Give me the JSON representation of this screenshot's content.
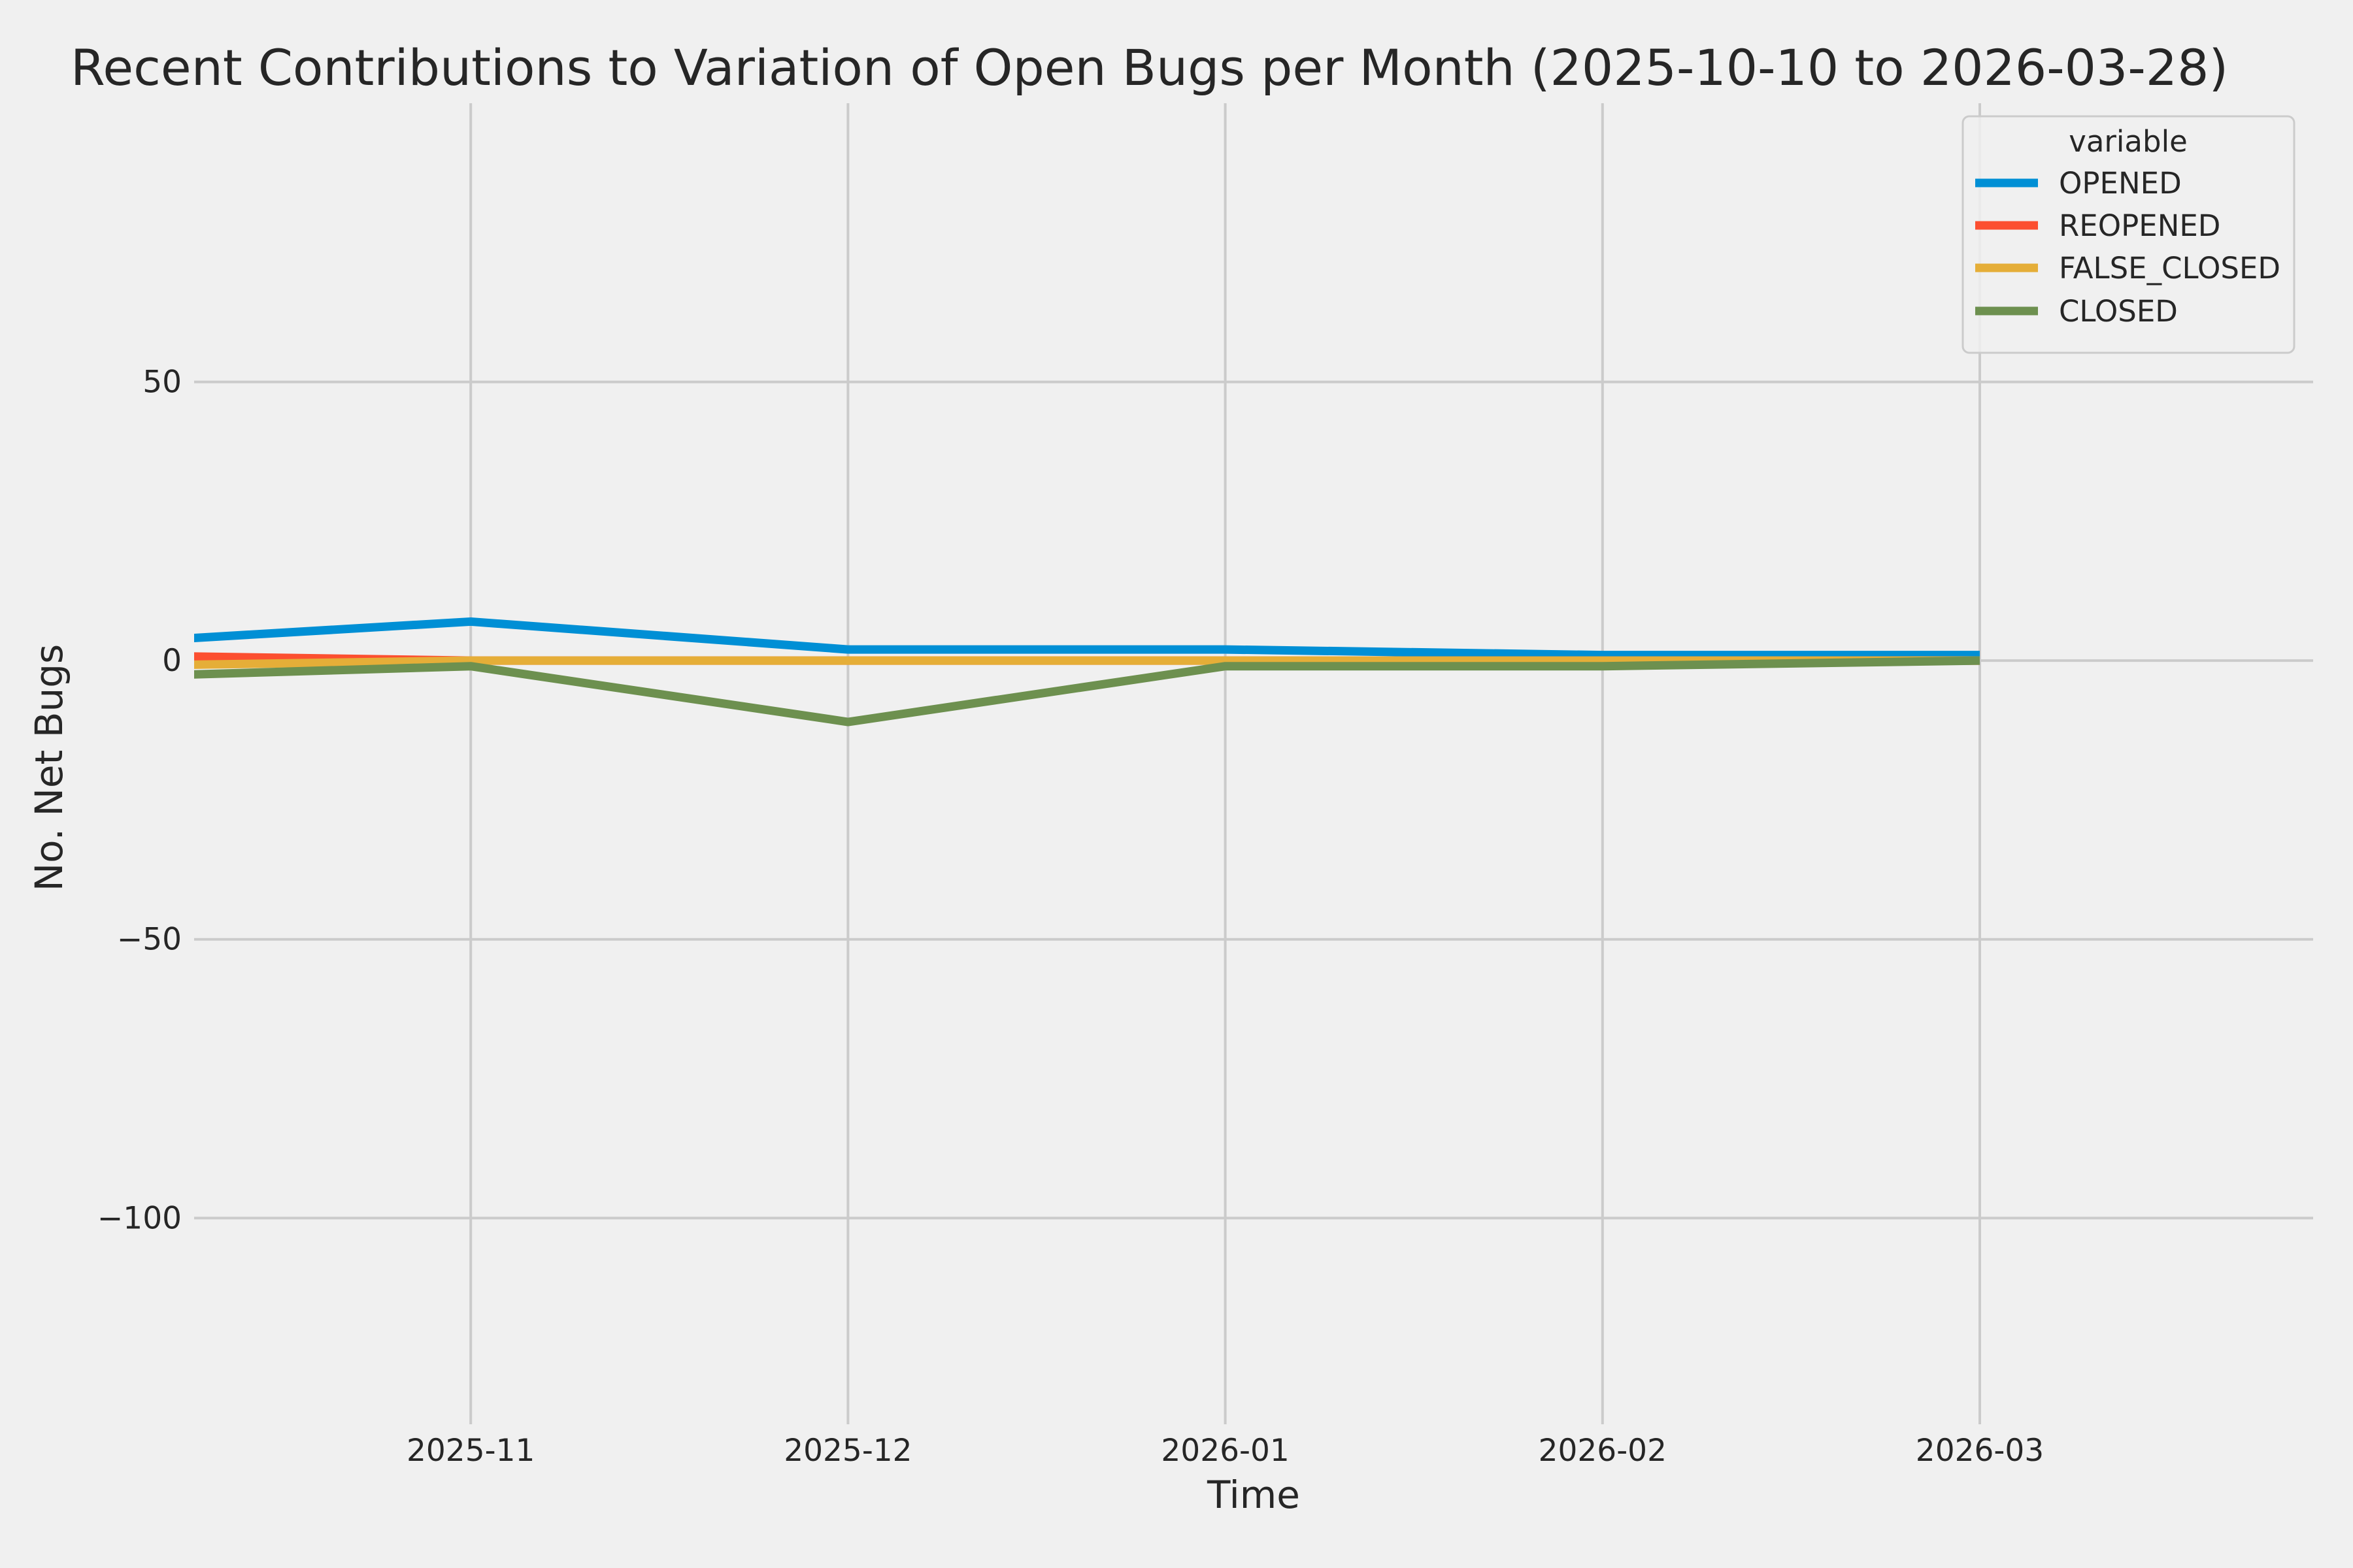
{
  "title": "Recent Contributions to Variation of Open Bugs per Month (2025-10-10 to 2026-03-28)",
  "axes": {
    "x_label": "Time",
    "y_label": "No. Net Bugs",
    "x_tick_labels": [
      "2025-11",
      "2025-12",
      "2026-01",
      "2026-02",
      "2026-03"
    ],
    "y_tick_labels": [
      "50",
      "0",
      "−50",
      "−100"
    ]
  },
  "legend": {
    "title": "variable",
    "entries": [
      "OPENED",
      "REOPENED",
      "FALSE_CLOSED",
      "CLOSED"
    ]
  },
  "colors": {
    "background": "#f0f0f0",
    "grid": "#cbcbcb",
    "text": "#262626",
    "opened": "#008fd5",
    "reopened": "#fc4f30",
    "false_closed": "#e5ae38",
    "closed": "#6d904f"
  },
  "chart_data": {
    "type": "line",
    "title": "Recent Contributions to Variation of Open Bugs per Month (2025-10-10 to 2026-03-28)",
    "xlabel": "Time",
    "ylabel": "No. Net Bugs",
    "categories": [
      "2025-10",
      "2025-11",
      "2025-12",
      "2026-01",
      "2026-02",
      "2026-03"
    ],
    "series": [
      {
        "name": "OPENED",
        "color": "#008fd5",
        "values": [
          3,
          7,
          2,
          2,
          1,
          1
        ]
      },
      {
        "name": "REOPENED",
        "color": "#fc4f30",
        "values": [
          1,
          0,
          0,
          0,
          0,
          0
        ]
      },
      {
        "name": "FALSE_CLOSED",
        "color": "#e5ae38",
        "values": [
          -1,
          0,
          0,
          0,
          0,
          0
        ]
      },
      {
        "name": "CLOSED",
        "color": "#6d904f",
        "values": [
          -3,
          -1,
          -11,
          -1,
          -1,
          0
        ]
      }
    ],
    "y_ticks": [
      {
        "value": 50,
        "label": "50"
      },
      {
        "value": 0,
        "label": "0"
      },
      {
        "value": -50,
        "label": "−50"
      },
      {
        "value": -100,
        "label": "−100"
      }
    ],
    "x_gridline_categories": [
      "2025-11",
      "2025-12",
      "2026-01",
      "2026-02",
      "2026-03"
    ],
    "ylim": [
      -137,
      100
    ],
    "xlim": [
      "2025-10-10",
      "2026-03-28"
    ],
    "grid": true,
    "legend_title": "variable",
    "legend_position": "upper right"
  }
}
